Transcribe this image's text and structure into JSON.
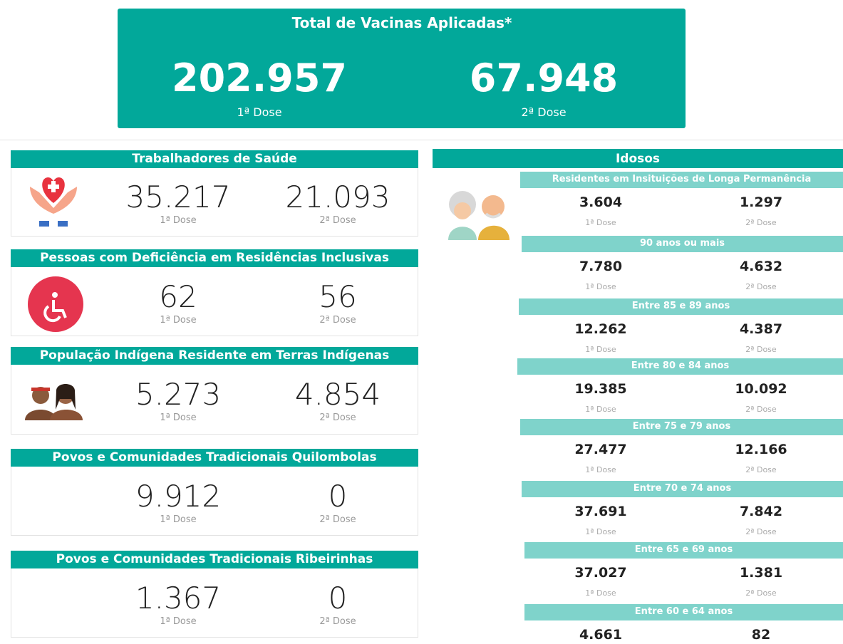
{
  "header": {
    "title": "Total de Vacinas Aplicadas*",
    "doses": [
      {
        "value": "202.957",
        "label": "1ª Dose"
      },
      {
        "value": "67.948",
        "label": "2ª Dose"
      }
    ]
  },
  "groups": [
    {
      "title": "Trabalhadores de Saúde",
      "doses": [
        {
          "value": "35.217",
          "label": "1ª Dose"
        },
        {
          "value": "21.093",
          "label": "2ª Dose"
        }
      ]
    },
    {
      "title": "Pessoas com Deficiência em Residências Inclusivas",
      "doses": [
        {
          "value": "62",
          "label": "1ª Dose"
        },
        {
          "value": "56",
          "label": "2ª Dose"
        }
      ]
    },
    {
      "title": "População Indígena Residente em Terras Indígenas",
      "doses": [
        {
          "value": "5.273",
          "label": "1ª Dose"
        },
        {
          "value": "4.854",
          "label": "2ª Dose"
        }
      ]
    },
    {
      "title": "Povos e Comunidades Tradicionais Quilombolas",
      "doses": [
        {
          "value": "9.912",
          "label": "1ª Dose"
        },
        {
          "value": "0",
          "label": "2ª Dose"
        }
      ]
    },
    {
      "title": "Povos e Comunidades Tradicionais Ribeirinhas",
      "doses": [
        {
          "value": "1.367",
          "label": "1ª Dose"
        },
        {
          "value": "0",
          "label": "2ª Dose"
        }
      ]
    }
  ],
  "idosos": {
    "title": "Idosos",
    "subgroups": [
      {
        "title": "Residentes em Insituições de Longa Permanência",
        "doses": [
          {
            "value": "3.604",
            "label": "1ª Dose"
          },
          {
            "value": "1.297",
            "label": "2ª Dose"
          }
        ]
      },
      {
        "title": "90 anos ou mais",
        "doses": [
          {
            "value": "7.780",
            "label": "1ª Dose"
          },
          {
            "value": "4.632",
            "label": "2ª Dose"
          }
        ]
      },
      {
        "title": "Entre 85 e 89 anos",
        "doses": [
          {
            "value": "12.262",
            "label": "1ª Dose"
          },
          {
            "value": "4.387",
            "label": "2ª Dose"
          }
        ]
      },
      {
        "title": "Entre 80 e 84 anos",
        "doses": [
          {
            "value": "19.385",
            "label": "1ª Dose"
          },
          {
            "value": "10.092",
            "label": "2ª Dose"
          }
        ]
      },
      {
        "title": "Entre 75 e 79 anos",
        "doses": [
          {
            "value": "27.477",
            "label": "1ª Dose"
          },
          {
            "value": "12.166",
            "label": "2ª Dose"
          }
        ]
      },
      {
        "title": "Entre 70 e 74 anos",
        "doses": [
          {
            "value": "37.691",
            "label": "1ª Dose"
          },
          {
            "value": "7.842",
            "label": "2ª Dose"
          }
        ]
      },
      {
        "title": "Entre 65 e 69 anos",
        "doses": [
          {
            "value": "37.027",
            "label": "1ª Dose"
          },
          {
            "value": "1.381",
            "label": "2ª Dose"
          }
        ]
      },
      {
        "title": "Entre 60 e 64 anos",
        "doses": [
          {
            "value": "4.661"
          },
          {
            "value": "82"
          }
        ]
      }
    ]
  }
}
